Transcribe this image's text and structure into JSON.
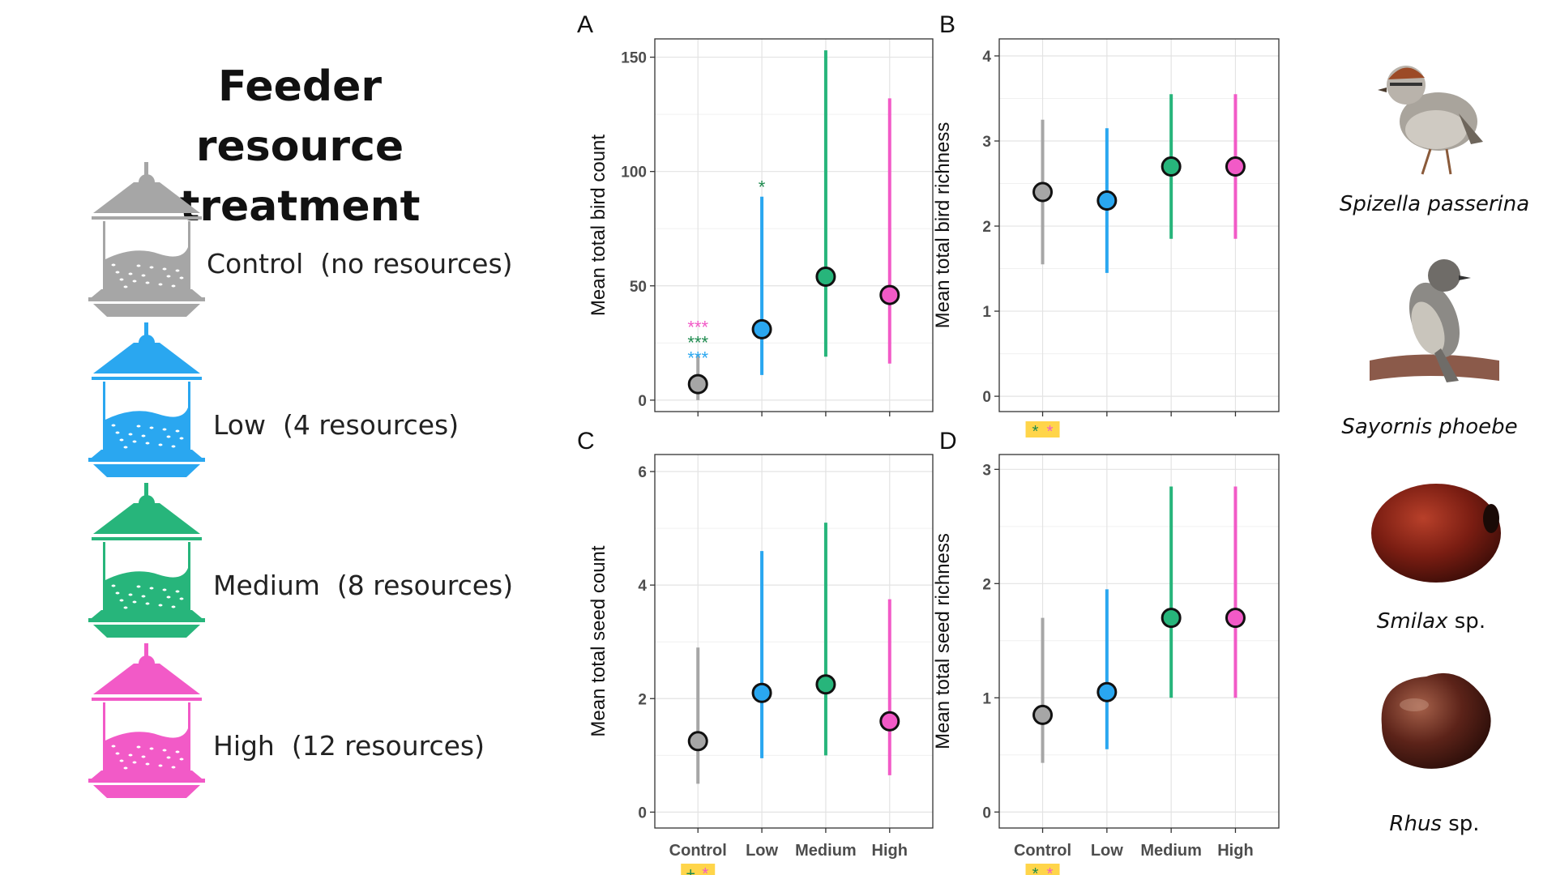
{
  "legend": {
    "title_line1": "Feeder resource",
    "title_line2": "treatment",
    "items": [
      {
        "label": "Control  (no resources)",
        "color": "#a6a6a6"
      },
      {
        "label": "Low  (4 resources)",
        "color": "#2aa7f0"
      },
      {
        "label": "Medium  (8 resources)",
        "color": "#27b57b"
      },
      {
        "label": "High  (12 resources)",
        "color": "#f25ac7"
      }
    ]
  },
  "species": [
    {
      "genus": "Spizella passerina",
      "suffix": ""
    },
    {
      "genus": "Sayornis phoebe",
      "suffix": ""
    },
    {
      "genus": "Smilax",
      "suffix": " sp."
    },
    {
      "genus": "Rhus",
      "suffix": " sp."
    }
  ],
  "colors": {
    "control": "#a6a6a6",
    "low": "#2aa7f0",
    "medium": "#27b57b",
    "high": "#f25ac7",
    "sig_green": "#1e8a4e",
    "sig_highlight": "#ffd54a"
  },
  "chart_data": [
    {
      "panel": "A",
      "type": "scatter",
      "categories": [
        "Control",
        "Low",
        "Medium",
        "High"
      ],
      "ylabel": "Mean total bird count",
      "ylim": [
        -5,
        158
      ],
      "yticks": [
        0,
        50,
        100,
        150
      ],
      "series": [
        {
          "values": [
            7,
            31,
            54,
            46
          ],
          "lower": [
            0,
            11,
            19,
            16
          ],
          "upper": [
            20,
            89,
            153,
            132
          ]
        }
      ],
      "annotations": [
        {
          "category": "Control",
          "text": "***",
          "color": "#f25ac7",
          "row": 2
        },
        {
          "category": "Control",
          "text": "***",
          "color": "#1e8a4e",
          "row": 1
        },
        {
          "category": "Control",
          "text": "***",
          "color": "#2aa7f0",
          "row": 0
        },
        {
          "category": "Low",
          "text": "*",
          "color": "#1e8a4e",
          "row": 0
        }
      ],
      "show_x_labels": false,
      "grid": true
    },
    {
      "panel": "B",
      "type": "scatter",
      "categories": [
        "Control",
        "Low",
        "Medium",
        "High"
      ],
      "ylabel": "Mean total bird richness",
      "ylim": [
        -0.18,
        4.2
      ],
      "yticks": [
        0,
        1,
        2,
        3,
        4
      ],
      "series": [
        {
          "values": [
            2.4,
            2.3,
            2.7,
            2.7
          ],
          "lower": [
            1.55,
            1.45,
            1.85,
            1.85
          ],
          "upper": [
            3.25,
            3.15,
            3.55,
            3.55
          ]
        }
      ],
      "below_axis_marks": [
        {
          "category": "Control",
          "marks": [
            {
              "text": "*",
              "color": "#1e8a4e"
            },
            {
              "text": "*",
              "color": "#f25ac7"
            }
          ]
        }
      ],
      "show_x_labels": false,
      "grid": true
    },
    {
      "panel": "C",
      "type": "scatter",
      "categories": [
        "Control",
        "Low",
        "Medium",
        "High"
      ],
      "ylabel": "Mean total seed count",
      "ylim": [
        -0.28,
        6.3
      ],
      "yticks": [
        0,
        2,
        4,
        6
      ],
      "series": [
        {
          "values": [
            1.25,
            2.1,
            2.25,
            1.6
          ],
          "lower": [
            0.5,
            0.95,
            1.0,
            0.65
          ],
          "upper": [
            2.9,
            4.6,
            5.1,
            3.75
          ]
        }
      ],
      "below_axis_marks": [
        {
          "category": "Control",
          "marks": [
            {
              "text": "+",
              "color": "#1e8a4e"
            },
            {
              "text": "*",
              "color": "#f25ac7"
            }
          ]
        }
      ],
      "show_x_labels": true,
      "grid": true
    },
    {
      "panel": "D",
      "type": "scatter",
      "categories": [
        "Control",
        "Low",
        "Medium",
        "High"
      ],
      "ylabel": "Mean total seed richness",
      "ylim": [
        -0.14,
        3.13
      ],
      "yticks": [
        0,
        1,
        2,
        3
      ],
      "series": [
        {
          "values": [
            0.85,
            1.05,
            1.7,
            1.7
          ],
          "lower": [
            0.43,
            0.55,
            1.0,
            1.0
          ],
          "upper": [
            1.7,
            1.95,
            2.85,
            2.85
          ]
        }
      ],
      "below_axis_marks": [
        {
          "category": "Control",
          "marks": [
            {
              "text": "*",
              "color": "#1e8a4e"
            },
            {
              "text": "*",
              "color": "#f25ac7"
            }
          ]
        }
      ],
      "show_x_labels": true,
      "grid": true
    }
  ]
}
